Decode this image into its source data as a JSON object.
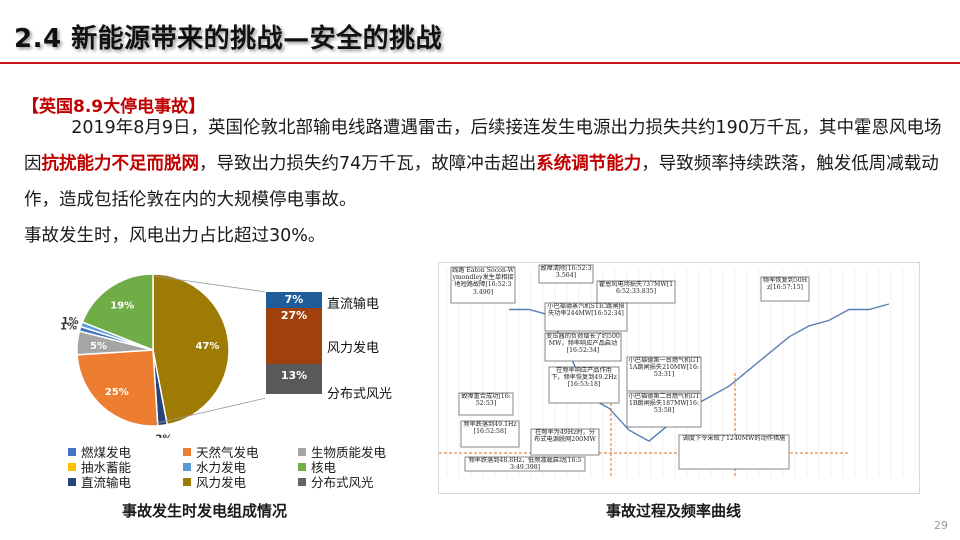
{
  "slide": {
    "title": "2.4 新能源带来的挑战—安全的挑战",
    "event_heading": "【英国8.9大停电事故】",
    "body": {
      "p1": "2019年8月9日，英国伦敦北部输电线路遭遇雷击，后续接连发生电源出力损失共约190万千瓦，其中霍恩风电场因",
      "p1_red": "抗扰能力不足而脱网",
      "p1b": "，导致出力损失约74万千瓦，故障冲击超出",
      "p1_red2": "系统调节能力",
      "p1c": "，导致频率持续跌落，触发低周减载动作，造成包括伦敦在内的大规模停电事故。",
      "p2": "事故发生时，风电出力占比超过30%。"
    },
    "page_number": "29"
  },
  "colors": {
    "accent_red": "#c00000",
    "coal": "#4472c4",
    "gas": "#ed7d31",
    "biomass": "#a5a5a5",
    "pumped": "#ffc000",
    "hydro": "#5b9bd5",
    "nuclear": "#70ad47",
    "interconnect": "#264478",
    "wind": "#9e7b05",
    "distributed": "#636363",
    "bar_dc": "#1f5c99",
    "bar_wind": "#a0410d",
    "bar_dist": "#595959"
  },
  "chart_data": [
    {
      "type": "pie",
      "title": "事故发生时发电组成情况",
      "slices": [
        {
          "name": "燃煤发电",
          "value": 1,
          "label": "1%",
          "color": "#4472c4"
        },
        {
          "name": "天然气发电",
          "value": 25,
          "label": "25%",
          "color": "#ed7d31"
        },
        {
          "name": "生物质能发电",
          "value": 5,
          "label": "5%",
          "color": "#a5a5a5"
        },
        {
          "name": "抽水蓄能",
          "value": 0,
          "label": "",
          "color": "#ffc000"
        },
        {
          "name": "水力发电",
          "value": 1,
          "label": "1%",
          "color": "#5b9bd5"
        },
        {
          "name": "核电",
          "value": 19,
          "label": "19%",
          "color": "#70ad47"
        },
        {
          "name": "直流输电",
          "value": 2,
          "label": "2%",
          "color": "#264478"
        },
        {
          "name": "风力发电",
          "value": 47,
          "label": "47%",
          "color": "#9e7b05"
        },
        {
          "name": "分布式风光",
          "value": 0,
          "label": "",
          "color": "#636363"
        }
      ],
      "legend": [
        "燃煤发电",
        "天然气发电",
        "生物质能发电",
        "抽水蓄能",
        "水力发电",
        "核电",
        "直流输电",
        "风力发电",
        "分布式风光"
      ],
      "breakout_bar": [
        {
          "name": "直流输电",
          "value": 7,
          "label": "7%"
        },
        {
          "name": "风力发电",
          "value": 27,
          "label": "27%"
        },
        {
          "name": "分布式风光",
          "value": 13,
          "label": "13%"
        }
      ]
    },
    {
      "type": "line",
      "title": "事故过程及频率曲线",
      "series": [
        {
          "values": [
            50.0,
            50.0,
            49.95,
            49.6,
            49.2,
            49.1,
            48.9,
            48.8,
            48.95,
            49.1,
            49.2,
            49.3,
            49.45,
            49.6,
            49.75,
            49.85,
            49.9,
            50.0,
            50.0,
            50.05
          ]
        }
      ],
      "annotations": [
        "线路 Eaton Socon-Wymondley发生单相接地短路故障[16:52:33.490]",
        "故障清除[16:52:33.564]",
        "霍恩风电场损失737MW[16:52:33.835]",
        "小巴福德蒸汽机STIC跳闸损失功率244MW[16:52:34]",
        "变压器的负荷增长了约500MW，频率响应产品启动[16:52:34]",
        "在频率响应产品作用下，频率恢复到49.2Hz[16:53:18]",
        "小巴福德第一台燃气机GT1A跳闸损失210MW[16:53:31]",
        "故障重合成功[16:52:53]",
        "小巴福德第二台燃气机GT1B跳闸损失187MW[16:53:58]",
        "频率跌落到49.1Hz[16:52:58]",
        "在频率为49Hz时，分布式电源脱网200MW",
        "频率跌落到48.8Hz，低频减载启动[16:53:49.398]",
        "调度下令采取了1240MW的动作措施",
        "频率恢复到50Hz[16:57:15]"
      ]
    }
  ]
}
